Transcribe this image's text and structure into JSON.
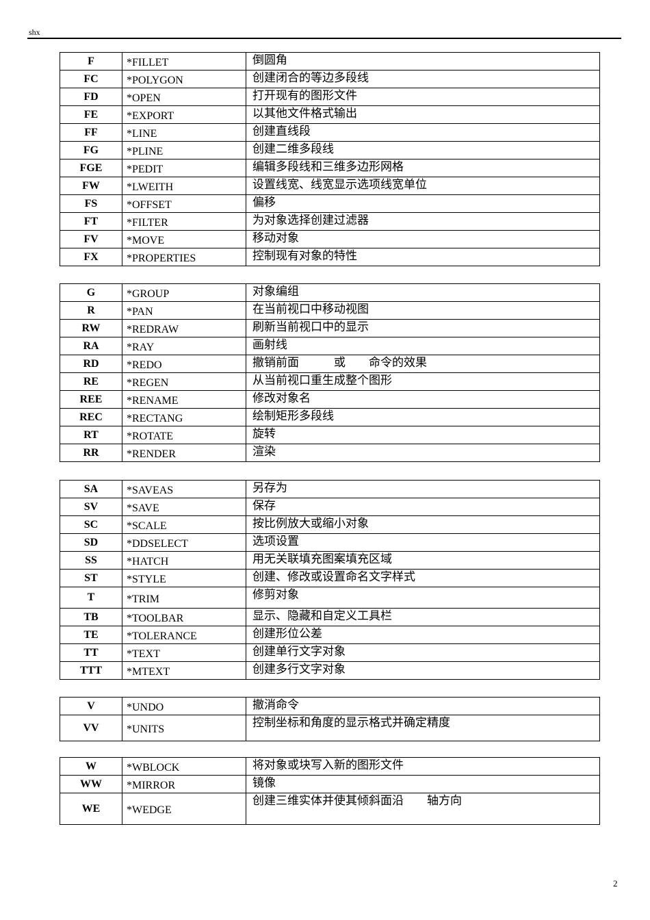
{
  "header": {
    "title": "shx"
  },
  "page_number": "2",
  "tables": [
    [
      [
        "F",
        "*FILLET",
        "倒圆角"
      ],
      [
        "FC",
        "*POLYGON",
        "创建闭合的等边多段线"
      ],
      [
        "FD",
        "*OPEN",
        "打开现有的图形文件"
      ],
      [
        "FE",
        "*EXPORT",
        "以其他文件格式输出"
      ],
      [
        "FF",
        "*LINE",
        "创建直线段"
      ],
      [
        "FG",
        "*PLINE",
        "创建二维多段线"
      ],
      [
        "FGE",
        "*PEDIT",
        "编辑多段线和三维多边形网格"
      ],
      [
        "FW",
        "*LWEITH",
        "设置线宽、线宽显示选项线宽单位"
      ],
      [
        "FS",
        "*OFFSET",
        "偏移"
      ],
      [
        "FT",
        "*FILTER",
        "为对象选择创建过滤器"
      ],
      [
        "FV",
        "*MOVE",
        "移动对象"
      ],
      [
        "FX",
        "*PROPERTIES",
        "控制现有对象的特性"
      ]
    ],
    [
      [
        "G",
        "*GROUP",
        "对象编组"
      ],
      [
        "R",
        "*PAN",
        "在当前视口中移动视图"
      ],
      [
        "RW",
        "*REDRAW",
        "刷新当前视口中的显示"
      ],
      [
        "RA",
        "*RAY",
        "画射线"
      ],
      [
        "RD",
        "*REDO",
        "撤销前面　　　或　　命令的效果"
      ],
      [
        "RE",
        "*REGEN",
        "从当前视口重生成整个图形"
      ],
      [
        "REE",
        "*RENAME",
        "修改对象名"
      ],
      [
        "REC",
        "*RECTANG",
        "绘制矩形多段线"
      ],
      [
        "RT",
        "*ROTATE",
        "旋转"
      ],
      [
        "RR",
        "*RENDER",
        "渲染"
      ]
    ],
    [
      [
        "SA",
        "*SAVEAS",
        "另存为"
      ],
      [
        "SV",
        "*SAVE",
        "保存"
      ],
      [
        "SC",
        "*SCALE",
        "按比例放大或缩小对象"
      ],
      [
        "SD",
        "*DDSELECT",
        "选项设置"
      ],
      [
        "SS",
        "*HATCH",
        "用无关联填充图案填充区域"
      ],
      [
        "ST",
        "*STYLE",
        "创建、修改或设置命名文字样式"
      ],
      [
        "T",
        "*TRIM",
        "修剪对象"
      ],
      [
        "TB",
        "*TOOLBAR",
        "显示、隐藏和自定义工具栏"
      ],
      [
        "TE",
        "*TOLERANCE",
        "创建形位公差"
      ],
      [
        "TT",
        "*TEXT",
        "创建单行文字对象"
      ],
      [
        "TTT",
        "*MTEXT",
        "创建多行文字对象"
      ]
    ],
    [
      [
        "V",
        "*UNDO",
        "撤消命令"
      ],
      [
        "VV",
        "*UNITS",
        "控制坐标和角度的显示格式并确定精度"
      ]
    ],
    [
      [
        "W",
        "*WBLOCK",
        "将对象或块写入新的图形文件"
      ],
      [
        "WW",
        "*MIRROR",
        "镜像"
      ],
      [
        "WE",
        "*WEDGE",
        "创建三维实体并使其倾斜面沿　　轴方向"
      ]
    ]
  ]
}
